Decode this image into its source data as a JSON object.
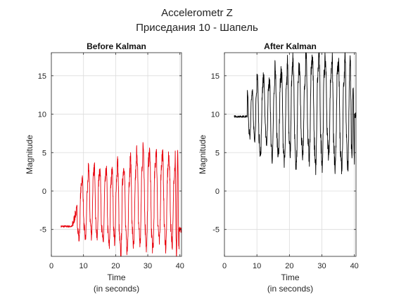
{
  "figure": {
    "title_line1": "Accelerometr Z",
    "title_line2": "Приседания 10 - Шапель"
  },
  "chart_data": [
    {
      "type": "line",
      "title": "Before Kalman",
      "xlabel": "Time",
      "xlabel_sub": "(in seconds)",
      "ylabel": "Magnitude",
      "xlim": [
        0,
        40.5
      ],
      "ylim": [
        -8.5,
        18
      ],
      "xticks": [
        0,
        10,
        20,
        30,
        40
      ],
      "yticks": [
        -5,
        0,
        5,
        10,
        15
      ],
      "grid": true,
      "series": [
        {
          "color": "#e8000b",
          "signal": {
            "x_start": 3.0,
            "x_end": 40.5,
            "baseline_before": -4.6,
            "active_start": 6.5,
            "peaks_x": [
              9.5,
              11.5,
              13.3,
              15.0,
              17.0,
              18.8,
              20.5,
              22.5,
              24.5,
              26.5,
              28.5,
              30.5,
              32.5,
              34.5,
              36.5,
              38.5
            ],
            "peaks_y": [
              1.5,
              3.0,
              3.0,
              2.5,
              2.5,
              3.0,
              3.5,
              3.0,
              4.0,
              5.0,
              5.5,
              4.5,
              5.0,
              4.5,
              4.0,
              4.5
            ],
            "troughs_y": [
              -6.0,
              -5.5,
              -6.0,
              -6.5,
              -7.0,
              -6.5,
              -8.0,
              -7.5,
              -7.0,
              -6.5,
              -7.0,
              -7.5,
              -6.5,
              -7.0,
              -6.5,
              -8.5
            ],
            "end_value": -5.0
          }
        }
      ]
    },
    {
      "type": "line",
      "title": "After Kalman",
      "xlabel": "Time",
      "xlabel_sub": "(in seconds)",
      "ylabel": "Magnitude",
      "xlim": [
        0,
        40.5
      ],
      "ylim": [
        -8.5,
        18
      ],
      "xticks": [
        0,
        10,
        20,
        30,
        40
      ],
      "yticks": [
        -5,
        0,
        5,
        10,
        15
      ],
      "grid": true,
      "series": [
        {
          "color": "#000000",
          "signal": {
            "x_start": 3.0,
            "x_end": 40.5,
            "baseline_before": 9.7,
            "active_start": 7.0,
            "peaks_x": [
              8.5,
              10.0,
              12.0,
              13.8,
              15.5,
              17.5,
              19.3,
              21.0,
              23.0,
              25.0,
              27.0,
              29.0,
              31.0,
              33.0,
              35.0,
              37.0,
              38.8
            ],
            "peaks_y": [
              13.0,
              15.0,
              14.5,
              14.0,
              16.0,
              15.0,
              16.5,
              17.0,
              15.5,
              18.0,
              17.0,
              17.5,
              16.5,
              17.0,
              16.0,
              18.0,
              13.5
            ],
            "troughs_y": [
              7.0,
              5.0,
              6.5,
              4.5,
              5.0,
              4.0,
              5.5,
              3.5,
              5.0,
              4.5,
              3.5,
              4.0,
              5.0,
              3.0,
              3.5,
              3.5,
              4.0
            ],
            "end_value": 9.8
          }
        }
      ]
    }
  ]
}
